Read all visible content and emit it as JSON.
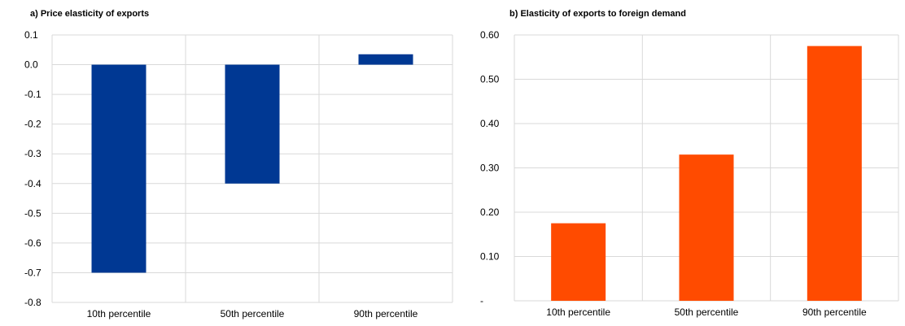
{
  "chart_data": [
    {
      "type": "bar",
      "title": "a) Price elasticity of exports",
      "categories": [
        "10th percentile",
        "50th percentile",
        "90th percentile"
      ],
      "values": [
        -0.7,
        -0.4,
        0.035
      ],
      "ylim": [
        -0.8,
        0.1
      ],
      "yticks": [
        "0.1",
        "0.0",
        "-0.1",
        "-0.2",
        "-0.3",
        "-0.4",
        "-0.5",
        "-0.6",
        "-0.7",
        "-0.8"
      ],
      "ytick_values": [
        0.1,
        0.0,
        -0.1,
        -0.2,
        -0.3,
        -0.4,
        -0.5,
        -0.6,
        -0.7,
        -0.8
      ],
      "color": "#003893",
      "grid": true,
      "legend": "none"
    },
    {
      "type": "bar",
      "title": "b) Elasticity of exports to foreign demand",
      "categories": [
        "10th percentile",
        "50th percentile",
        "90th percentile"
      ],
      "values": [
        0.175,
        0.33,
        0.575
      ],
      "ylim": [
        0,
        0.6
      ],
      "yticks": [
        "0.60",
        "0.50",
        "0.40",
        "0.30",
        "0.20",
        "0.10",
        "-"
      ],
      "ytick_values": [
        0.6,
        0.5,
        0.4,
        0.3,
        0.2,
        0.1,
        0.0
      ],
      "color": "#FF4B00",
      "grid": true,
      "legend": "none"
    }
  ]
}
